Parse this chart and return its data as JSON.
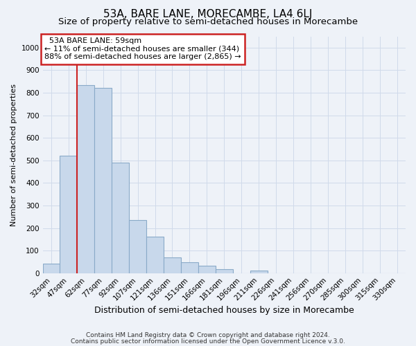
{
  "title": "53A, BARE LANE, MORECAMBE, LA4 6LJ",
  "subtitle": "Size of property relative to semi-detached houses in Morecambe",
  "xlabel": "Distribution of semi-detached houses by size in Morecambe",
  "ylabel": "Number of semi-detached properties",
  "bar_color": "#c8d8eb",
  "bar_edge_color": "#8aaac8",
  "grid_color": "#d0daea",
  "background_color": "#eef2f8",
  "annotation_box_color": "#ffffff",
  "annotation_border_color": "#cc2222",
  "vline_color": "#cc2222",
  "categories": [
    "32sqm",
    "47sqm",
    "62sqm",
    "77sqm",
    "92sqm",
    "107sqm",
    "121sqm",
    "136sqm",
    "151sqm",
    "166sqm",
    "181sqm",
    "196sqm",
    "211sqm",
    "226sqm",
    "241sqm",
    "256sqm",
    "270sqm",
    "285sqm",
    "300sqm",
    "315sqm",
    "330sqm"
  ],
  "values": [
    42,
    520,
    835,
    820,
    490,
    235,
    162,
    70,
    47,
    33,
    18,
    0,
    10,
    0,
    0,
    0,
    0,
    0,
    0,
    0,
    0
  ],
  "ylim": [
    0,
    1050
  ],
  "yticks": [
    0,
    100,
    200,
    300,
    400,
    500,
    600,
    700,
    800,
    900,
    1000
  ],
  "property_label": "53A BARE LANE: 59sqm",
  "pct_smaller": 11,
  "pct_larger": 88,
  "n_smaller": 344,
  "n_larger": 2865,
  "vline_bin_index": 2,
  "footnote1": "Contains HM Land Registry data © Crown copyright and database right 2024.",
  "footnote2": "Contains public sector information licensed under the Open Government Licence v.3.0.",
  "title_fontsize": 11,
  "subtitle_fontsize": 9.5,
  "xlabel_fontsize": 9,
  "ylabel_fontsize": 8,
  "tick_fontsize": 7.5,
  "annotation_fontsize": 8,
  "footnote_fontsize": 6.5
}
